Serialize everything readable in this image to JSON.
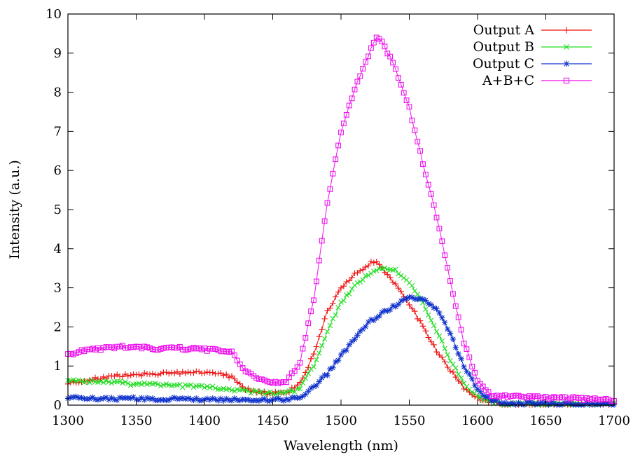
{
  "chart_data": {
    "type": "line",
    "title": "",
    "xlabel": "Wavelength (nm)",
    "ylabel": "Intensity (a.u.)",
    "xlim": [
      1300,
      1700
    ],
    "ylim": [
      0,
      10
    ],
    "xticks": [
      "1300",
      "1350",
      "1400",
      "1450",
      "1500",
      "1550",
      "1600",
      "1650",
      "1700"
    ],
    "yticks": [
      "0",
      "1",
      "2",
      "3",
      "4",
      "5",
      "6",
      "7",
      "8",
      "9",
      "10"
    ],
    "grid": false,
    "legend_position": "top-right",
    "series": [
      {
        "name": "Output A",
        "color": "#ee1111",
        "marker": "plus-icon",
        "x": [
          1300,
          1310,
          1320,
          1330,
          1340,
          1350,
          1360,
          1370,
          1380,
          1390,
          1400,
          1410,
          1420,
          1425,
          1430,
          1440,
          1450,
          1460,
          1470,
          1480,
          1490,
          1500,
          1510,
          1520,
          1525,
          1530,
          1540,
          1550,
          1560,
          1570,
          1580,
          1590,
          1600,
          1610,
          1620,
          1640,
          1660,
          1680,
          1700
        ],
        "y": [
          0.55,
          0.62,
          0.68,
          0.72,
          0.76,
          0.78,
          0.8,
          0.81,
          0.82,
          0.84,
          0.83,
          0.82,
          0.72,
          0.55,
          0.42,
          0.32,
          0.3,
          0.32,
          0.55,
          1.3,
          2.4,
          3.0,
          3.35,
          3.6,
          3.7,
          3.5,
          3.1,
          2.6,
          2.0,
          1.4,
          0.9,
          0.45,
          0.18,
          0.06,
          0.02,
          0.02,
          0.02,
          0.02,
          0.02
        ]
      },
      {
        "name": "Output B",
        "color": "#22dd22",
        "marker": "cross-icon",
        "x": [
          1300,
          1310,
          1320,
          1330,
          1340,
          1350,
          1360,
          1370,
          1380,
          1390,
          1400,
          1410,
          1420,
          1430,
          1440,
          1450,
          1460,
          1470,
          1480,
          1490,
          1500,
          1510,
          1520,
          1530,
          1540,
          1550,
          1560,
          1570,
          1580,
          1590,
          1600,
          1610,
          1620,
          1640,
          1660,
          1680,
          1700
        ],
        "y": [
          0.62,
          0.62,
          0.6,
          0.58,
          0.56,
          0.54,
          0.53,
          0.51,
          0.5,
          0.48,
          0.46,
          0.44,
          0.4,
          0.36,
          0.32,
          0.3,
          0.3,
          0.42,
          1.0,
          1.9,
          2.6,
          3.05,
          3.35,
          3.5,
          3.45,
          3.15,
          2.6,
          1.9,
          1.15,
          0.55,
          0.2,
          0.08,
          0.04,
          0.03,
          0.03,
          0.03,
          0.03
        ]
      },
      {
        "name": "Output C",
        "color": "#1133cc",
        "marker": "star-icon",
        "x": [
          1300,
          1320,
          1340,
          1360,
          1380,
          1400,
          1420,
          1440,
          1460,
          1470,
          1480,
          1490,
          1500,
          1510,
          1520,
          1530,
          1540,
          1550,
          1560,
          1570,
          1580,
          1590,
          1600,
          1610,
          1620,
          1640,
          1660,
          1680,
          1700
        ],
        "y": [
          0.18,
          0.17,
          0.17,
          0.16,
          0.16,
          0.15,
          0.15,
          0.14,
          0.15,
          0.22,
          0.45,
          0.8,
          1.25,
          1.7,
          2.1,
          2.35,
          2.55,
          2.75,
          2.7,
          2.45,
          1.85,
          1.0,
          0.4,
          0.12,
          0.05,
          0.04,
          0.03,
          0.03,
          0.03
        ]
      },
      {
        "name": "A+B+C",
        "color": "#ee11ee",
        "marker": "square-icon",
        "x": [
          1300,
          1310,
          1320,
          1330,
          1340,
          1350,
          1360,
          1370,
          1380,
          1390,
          1400,
          1410,
          1420,
          1425,
          1430,
          1440,
          1450,
          1460,
          1470,
          1480,
          1490,
          1500,
          1510,
          1520,
          1525,
          1530,
          1540,
          1550,
          1560,
          1570,
          1580,
          1590,
          1600,
          1610,
          1620,
          1640,
          1660,
          1680,
          1700
        ],
        "y": [
          1.3,
          1.38,
          1.43,
          1.47,
          1.5,
          1.48,
          1.45,
          1.45,
          1.46,
          1.44,
          1.42,
          1.4,
          1.35,
          1.1,
          0.85,
          0.65,
          0.56,
          0.58,
          1.1,
          2.7,
          5.2,
          7.0,
          8.1,
          8.9,
          9.4,
          9.3,
          8.6,
          7.6,
          6.2,
          4.8,
          3.2,
          1.6,
          0.6,
          0.25,
          0.22,
          0.2,
          0.18,
          0.16,
          0.12
        ]
      }
    ]
  }
}
